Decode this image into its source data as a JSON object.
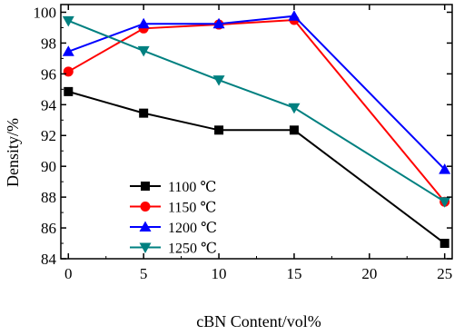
{
  "chart_data": {
    "type": "line",
    "xlabel": "cBN Content/vol%",
    "ylabel": "Density/%",
    "xlim": [
      -0.5,
      25.5
    ],
    "ylim": [
      84,
      100.5
    ],
    "x_ticks": [
      0,
      5,
      10,
      15,
      20,
      25
    ],
    "y_ticks": [
      84,
      86,
      88,
      90,
      92,
      94,
      96,
      98,
      100
    ],
    "grid": false,
    "legend_position": "center-left",
    "x": [
      0,
      5,
      10,
      15,
      25
    ],
    "series": [
      {
        "name": "1100 ℃",
        "color": "#000000",
        "marker": "square",
        "values": [
          94.85,
          93.45,
          92.35,
          92.35,
          85.0
        ]
      },
      {
        "name": "1150 ℃",
        "color": "#ff0000",
        "marker": "circle",
        "values": [
          96.15,
          98.95,
          99.2,
          99.5,
          87.7
        ]
      },
      {
        "name": "1200 ℃",
        "color": "#0000ff",
        "marker": "triangle-up",
        "values": [
          97.45,
          99.25,
          99.25,
          99.75,
          89.8
        ]
      },
      {
        "name": "1250 ℃",
        "color": "#008080",
        "marker": "triangle-down",
        "values": [
          99.45,
          97.5,
          95.6,
          93.8,
          87.7
        ]
      }
    ]
  }
}
